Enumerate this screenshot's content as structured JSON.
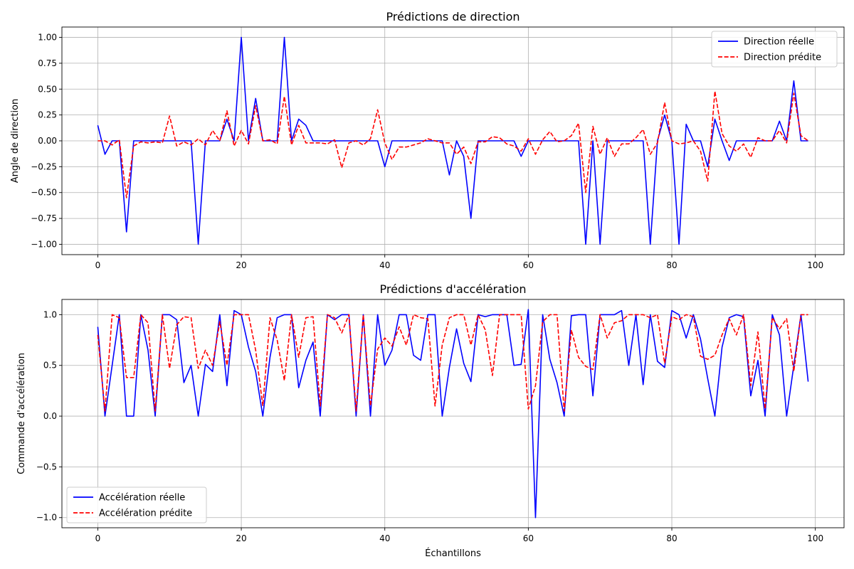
{
  "chart_data": [
    {
      "type": "line",
      "title": "Prédictions de direction",
      "xlabel": "",
      "ylabel": "Angle de direction",
      "xlim": [
        -5,
        104
      ],
      "ylim": [
        -1.1,
        1.1
      ],
      "xticks": [
        0,
        20,
        40,
        60,
        80,
        100
      ],
      "yticks": [
        -1.0,
        -0.75,
        -0.5,
        -0.25,
        0.0,
        0.25,
        0.5,
        0.75,
        1.0
      ],
      "ytick_labels": [
        "−1.00",
        "−0.75",
        "−0.50",
        "−0.25",
        "0.00",
        "0.25",
        "0.50",
        "0.75",
        "1.00"
      ],
      "grid": true,
      "legend": "top-right",
      "series": [
        {
          "name": "Direction réelle",
          "color": "#0000ff",
          "style": "solid",
          "values": [
            0.15,
            -0.13,
            0,
            0,
            -0.88,
            0,
            0,
            0,
            0,
            0,
            0,
            0,
            0,
            0,
            -1.0,
            0,
            0,
            0,
            0.21,
            0,
            1.0,
            0,
            0.41,
            0,
            0,
            0,
            1.0,
            0,
            0.21,
            0.15,
            0,
            0,
            0,
            0,
            0,
            0,
            0,
            0,
            0,
            0,
            -0.25,
            0,
            0,
            0,
            0,
            0,
            0,
            0,
            0,
            -0.33,
            0,
            -0.15,
            -0.75,
            0,
            0,
            0,
            0,
            0,
            0,
            -0.15,
            0,
            0,
            0,
            0,
            0,
            0,
            0,
            0,
            -1.0,
            0,
            -1.0,
            0,
            0,
            0,
            0,
            0,
            0,
            -1.0,
            0,
            0.25,
            0,
            -1.0,
            0.16,
            0,
            0,
            -0.25,
            0.21,
            0,
            -0.19,
            0,
            0,
            0,
            0,
            0,
            0,
            0.19,
            0,
            0.58,
            0,
            0
          ]
        },
        {
          "name": "Direction prédite",
          "color": "#ff0000",
          "style": "dashed",
          "values": [
            0,
            0,
            -0.04,
            0.01,
            -0.55,
            -0.05,
            -0.01,
            -0.02,
            -0.01,
            -0.02,
            0.24,
            -0.05,
            -0.01,
            -0.04,
            0.02,
            -0.04,
            0.1,
            0,
            0.29,
            -0.05,
            0.1,
            -0.03,
            0.34,
            0,
            0.01,
            -0.03,
            0.43,
            -0.04,
            0.15,
            -0.02,
            -0.02,
            -0.02,
            -0.03,
            0.01,
            -0.26,
            -0.02,
            0,
            -0.04,
            0.02,
            0.3,
            -0.02,
            -0.18,
            -0.06,
            -0.06,
            -0.04,
            -0.02,
            0.02,
            0,
            -0.02,
            -0.02,
            -0.13,
            -0.06,
            -0.22,
            -0.01,
            -0.01,
            0.04,
            0.03,
            -0.03,
            -0.05,
            -0.1,
            0.02,
            -0.13,
            0.01,
            0.09,
            -0.01,
            0,
            0.05,
            0.17,
            -0.5,
            0.14,
            -0.13,
            0.03,
            -0.15,
            -0.03,
            -0.03,
            0.03,
            0.11,
            -0.13,
            -0.02,
            0.37,
            0,
            -0.03,
            -0.02,
            0,
            -0.1,
            -0.39,
            0.48,
            0.07,
            -0.05,
            -0.1,
            -0.03,
            -0.16,
            0.03,
            0,
            0,
            0.1,
            -0.02,
            0.46,
            0.05,
            0
          ]
        }
      ]
    },
    {
      "type": "line",
      "title": "Prédictions d'accélération",
      "xlabel": "Échantillons",
      "ylabel": "Commande d'accélération",
      "xlim": [
        -5,
        104
      ],
      "ylim": [
        -1.1,
        1.15
      ],
      "xticks": [
        0,
        20,
        40,
        60,
        80,
        100
      ],
      "yticks": [
        -1.0,
        -0.5,
        0.0,
        0.5,
        1.0
      ],
      "ytick_labels": [
        "−1.0",
        "−0.5",
        "0.0",
        "0.5",
        "1.0"
      ],
      "grid": true,
      "legend": "bottom-left",
      "series": [
        {
          "name": "Accélération réelle",
          "color": "#0000ff",
          "style": "solid",
          "values": [
            0.88,
            0,
            0.5,
            1.0,
            0,
            0,
            1.0,
            0.65,
            0,
            1.0,
            1.0,
            0.95,
            0.33,
            0.5,
            0,
            0.51,
            0.44,
            1.0,
            0.3,
            1.04,
            1.0,
            0.68,
            0.44,
            0,
            0.58,
            0.97,
            1.0,
            1.0,
            0.28,
            0.55,
            0.73,
            0,
            1.0,
            0.95,
            1.0,
            1.0,
            0,
            1.0,
            0,
            1.0,
            0.5,
            0.65,
            1.0,
            1.0,
            0.6,
            0.55,
            1.0,
            1.0,
            0,
            0.48,
            0.86,
            0.52,
            0.34,
            1.0,
            0.98,
            1.0,
            1.0,
            1.0,
            0.5,
            0.51,
            1.05,
            -1.0,
            1.0,
            0.56,
            0.33,
            0,
            0.99,
            1.0,
            1.0,
            0.2,
            1.0,
            1.0,
            1.0,
            1.04,
            0.5,
            1.0,
            0.31,
            1.0,
            0.54,
            0.48,
            1.04,
            1.0,
            0.77,
            1.0,
            0.76,
            0.37,
            0,
            0.68,
            0.97,
            1.0,
            0.98,
            0.2,
            0.55,
            0,
            1.0,
            0.8,
            0,
            0.5,
            1.0,
            0.34
          ]
        },
        {
          "name": "Accélération prédite",
          "color": "#ff0000",
          "style": "dashed",
          "values": [
            0.8,
            0.05,
            1.0,
            0.97,
            0.38,
            0.38,
            1.0,
            0.92,
            0.05,
            1.0,
            0.47,
            0.9,
            0.98,
            0.97,
            0.47,
            0.65,
            0.5,
            0.93,
            0.5,
            1.0,
            1.0,
            1.0,
            0.65,
            0.1,
            0.97,
            0.75,
            0.35,
            1.0,
            0.58,
            0.97,
            0.98,
            0.1,
            1.0,
            0.97,
            0.82,
            1.0,
            0.05,
            1.0,
            0.1,
            0.66,
            0.77,
            0.69,
            0.88,
            0.7,
            1.0,
            0.97,
            0.96,
            0.1,
            0.7,
            0.97,
            1.0,
            1.0,
            0.7,
            1.0,
            0.85,
            0.4,
            1.0,
            1.0,
            1.0,
            1.0,
            0.07,
            0.3,
            0.93,
            1.0,
            1.0,
            0.05,
            0.85,
            0.58,
            0.49,
            0.46,
            1.0,
            0.77,
            0.92,
            0.94,
            1.0,
            1.0,
            1.0,
            0.97,
            1.0,
            0.52,
            0.98,
            0.95,
            1.0,
            0.98,
            0.59,
            0.56,
            0.6,
            0.8,
            0.96,
            0.8,
            1.0,
            0.3,
            0.83,
            0.07,
            0.97,
            0.86,
            0.96,
            0.44,
            1.0,
            1.0
          ]
        }
      ]
    }
  ]
}
